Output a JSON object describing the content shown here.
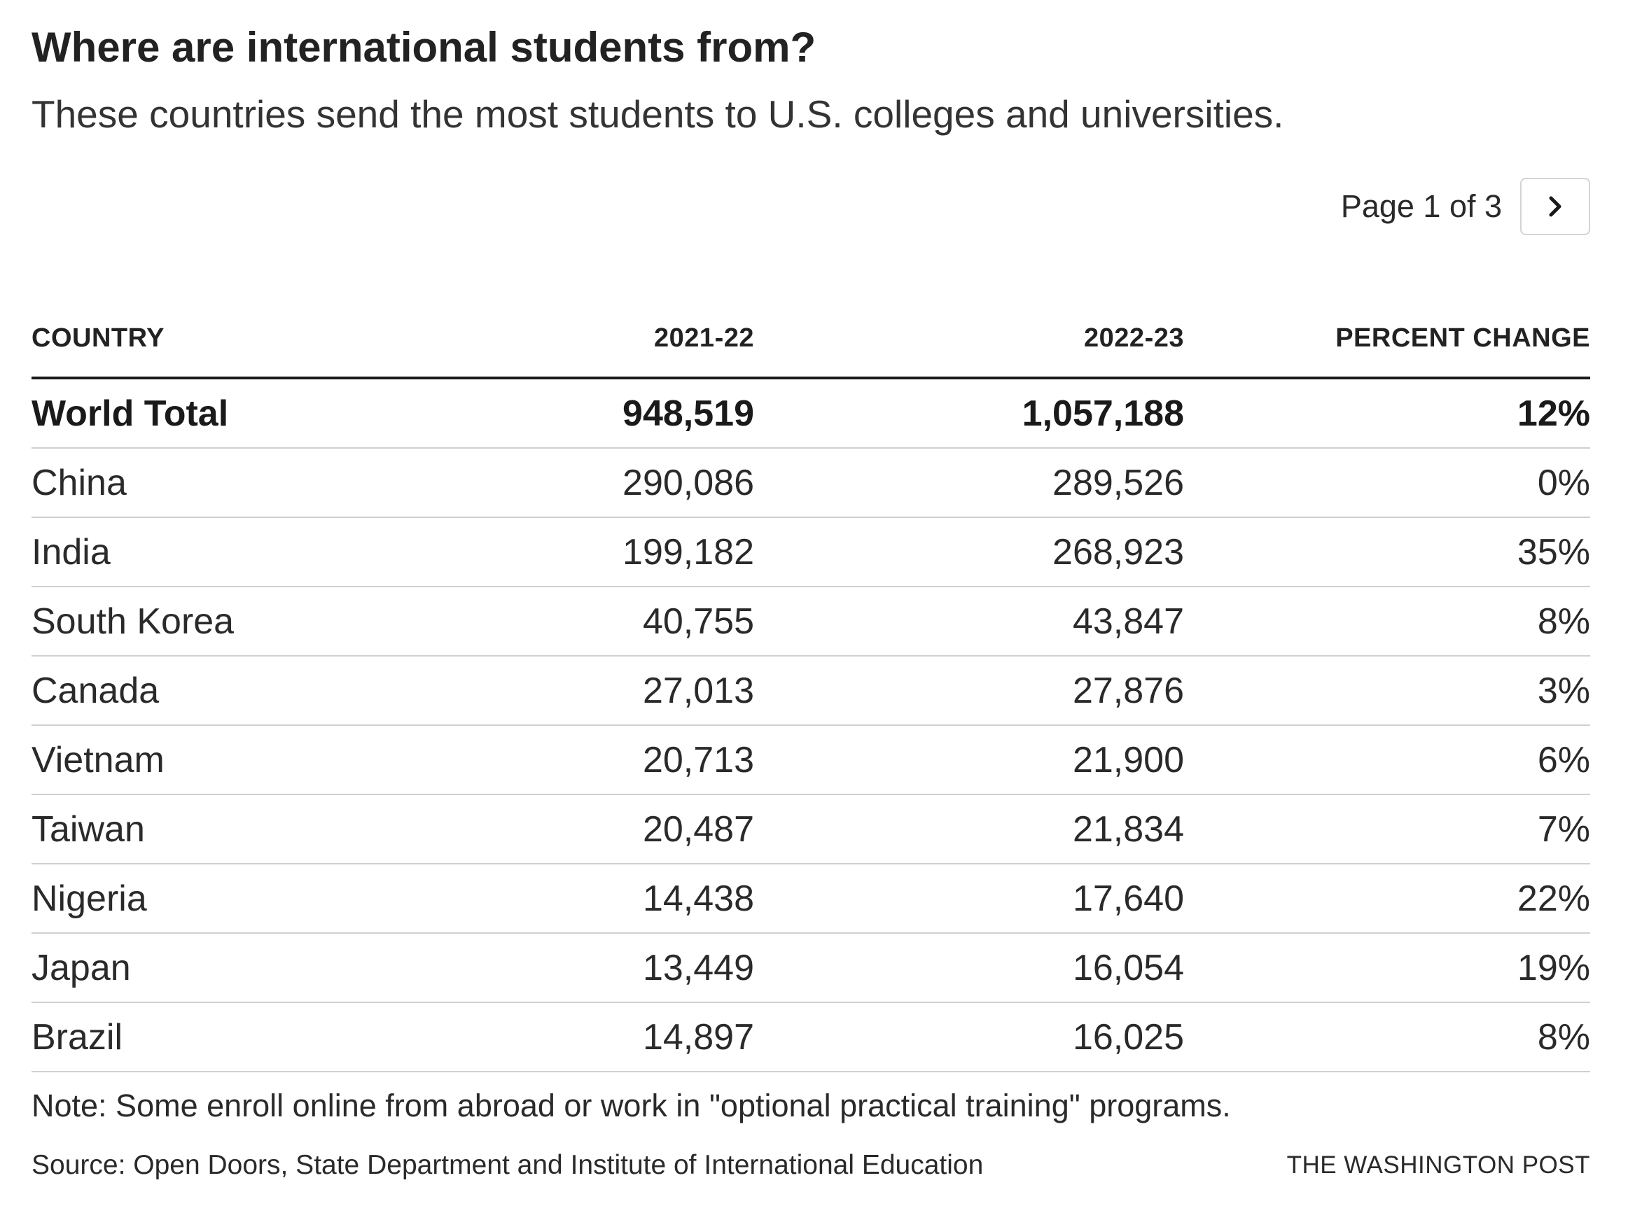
{
  "header": {
    "title": "Where are international students from?",
    "subtitle": "These countries send the most students to U.S. colleges and universities."
  },
  "pagination": {
    "label": "Page 1 of 3",
    "next_icon": "chevron-right-icon"
  },
  "chart_data": {
    "type": "table",
    "columns": [
      "COUNTRY",
      "2021-22",
      "2022-23",
      "PERCENT CHANGE"
    ],
    "rows": [
      [
        "World Total",
        "948,519",
        "1,057,188",
        "12%"
      ],
      [
        "China",
        "290,086",
        "289,526",
        "0%"
      ],
      [
        "India",
        "199,182",
        "268,923",
        "35%"
      ],
      [
        "South Korea",
        "40,755",
        "43,847",
        "8%"
      ],
      [
        "Canada",
        "27,013",
        "27,876",
        "3%"
      ],
      [
        "Vietnam",
        "20,713",
        "21,900",
        "6%"
      ],
      [
        "Taiwan",
        "20,487",
        "21,834",
        "7%"
      ],
      [
        "Nigeria",
        "14,438",
        "17,640",
        "22%"
      ],
      [
        "Japan",
        "13,449",
        "16,054",
        "19%"
      ],
      [
        "Brazil",
        "14,897",
        "16,025",
        "8%"
      ]
    ]
  },
  "footer": {
    "note": "Note: Some enroll online from abroad or work in \"optional practical training\" programs.",
    "source": "Source: Open Doors, State Department and Institute of International Education",
    "credit": "THE WASHINGTON POST"
  }
}
